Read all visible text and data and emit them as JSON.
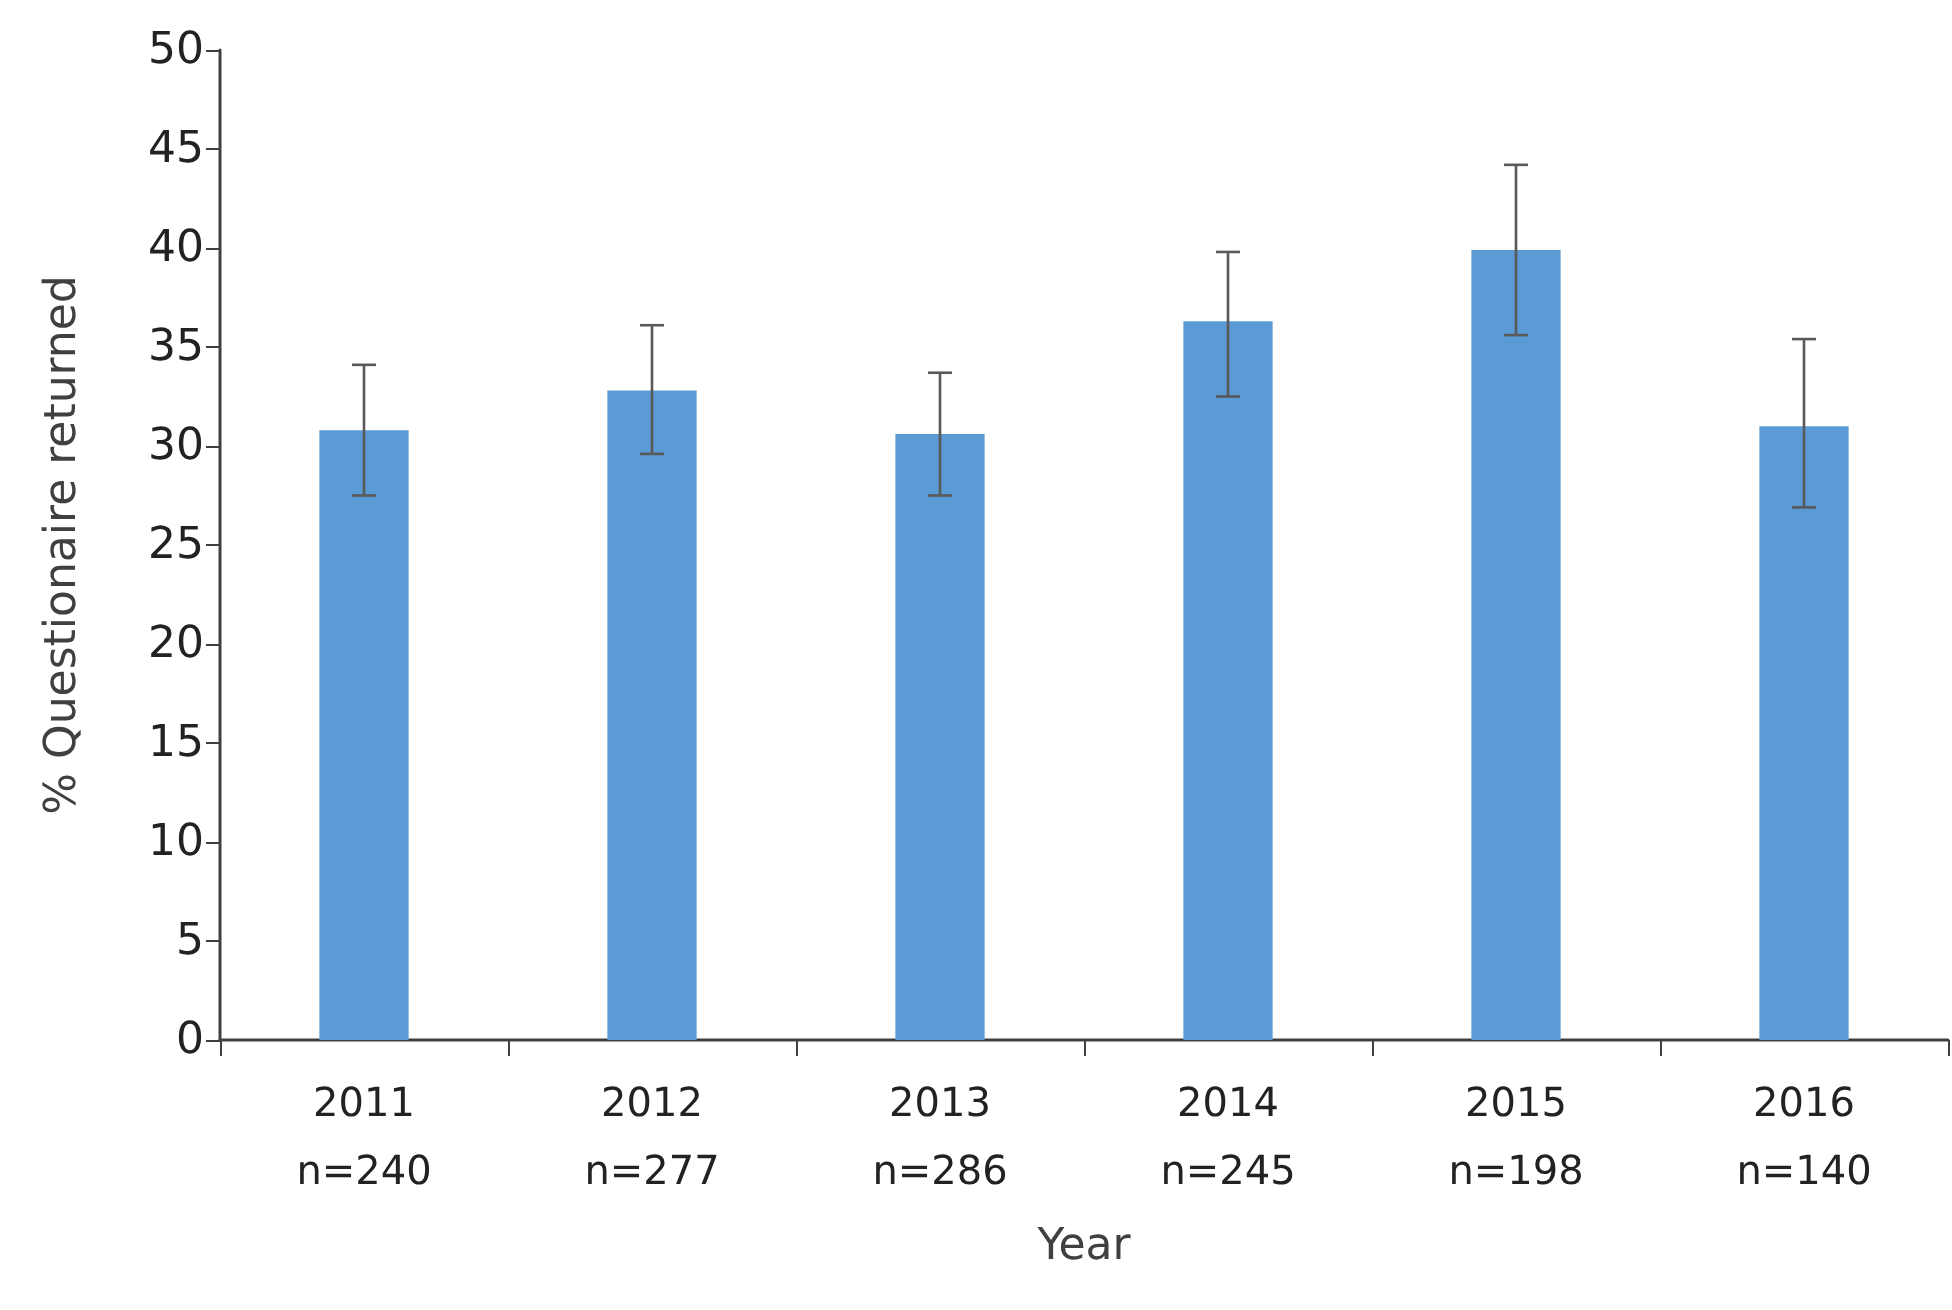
{
  "chart_data": {
    "type": "bar",
    "xlabel": "Year",
    "ylabel": "% Questionaire returned",
    "categories": [
      "2011\nn=240",
      "2012\nn=277",
      "2013\nn=286",
      "2014\nn=245",
      "2015\nn=198",
      "2016\nn=140"
    ],
    "values": [
      30.8,
      32.8,
      30.6,
      36.3,
      39.9,
      31.0
    ],
    "errors": [
      [
        27.5,
        34.1
      ],
      [
        29.6,
        36.1
      ],
      [
        27.5,
        33.7
      ],
      [
        32.5,
        39.8
      ],
      [
        35.6,
        44.2
      ],
      [
        26.9,
        35.4
      ]
    ],
    "color": "#5b9bd5",
    "ylim": [
      0,
      50
    ],
    "yticks": [
      0,
      5,
      10,
      15,
      20,
      25,
      30,
      35,
      40,
      45,
      50
    ],
    "grid": false
  }
}
